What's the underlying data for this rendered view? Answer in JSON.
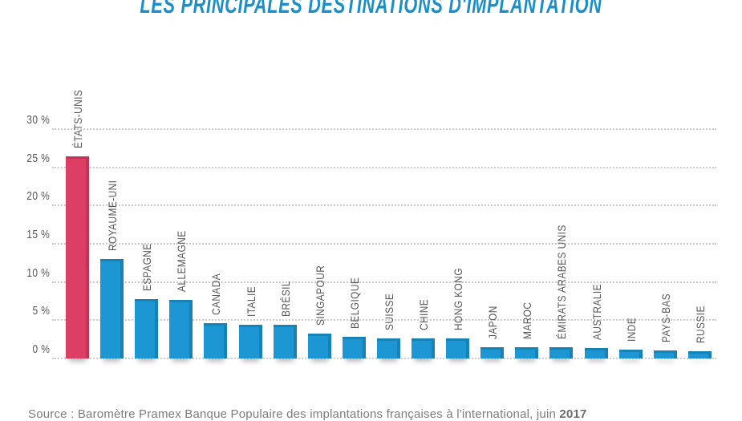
{
  "header": {
    "title": "LES PRINCIPALES DESTINATIONS D'IMPLANTATION"
  },
  "chart_data": {
    "type": "bar",
    "title": "LES PRINCIPALES DESTINATIONS D'IMPLANTATION",
    "categories": [
      "ÉTATS-UNIS",
      "ROYAUME-UNI",
      "ESPAGNE",
      "ALLEMAGNE",
      "CANADA",
      "ITALIE",
      "BRÉSIL",
      "SINGAPOUR",
      "BELGIQUE",
      "SUISSE",
      "CHINE",
      "HONG KONG",
      "JAPON",
      "MAROC",
      "ÉMIRATS ARABES UNIS",
      "AUSTRALIE",
      "INDE",
      "PAYS-BAS",
      "RUSSIE"
    ],
    "values": [
      26.4,
      13,
      7.8,
      7.7,
      4.6,
      4.4,
      4.4,
      3.2,
      2.8,
      2.6,
      2.6,
      2.6,
      1.5,
      1.5,
      1.5,
      1.4,
      1.2,
      1.0,
      0.9
    ],
    "unit": "%",
    "xlabel": "",
    "ylabel": "",
    "ylim": [
      0,
      30
    ],
    "yticks": [
      0,
      5,
      10,
      15,
      20,
      25,
      30
    ],
    "ytick_suffix": " %",
    "grid": "horizontal-dotted",
    "legend": "none",
    "highlight_index": 0,
    "colors": {
      "bar_default": "#1d97d4",
      "bar_highlight": "#dd3f64",
      "title": "#1a8ec8",
      "labels": "#58585a",
      "gridline": "#cccccc"
    }
  },
  "source": {
    "text": "Source : Baromètre Pramex Banque Populaire des implantations françaises à l'international, juin ",
    "year": "2017"
  }
}
